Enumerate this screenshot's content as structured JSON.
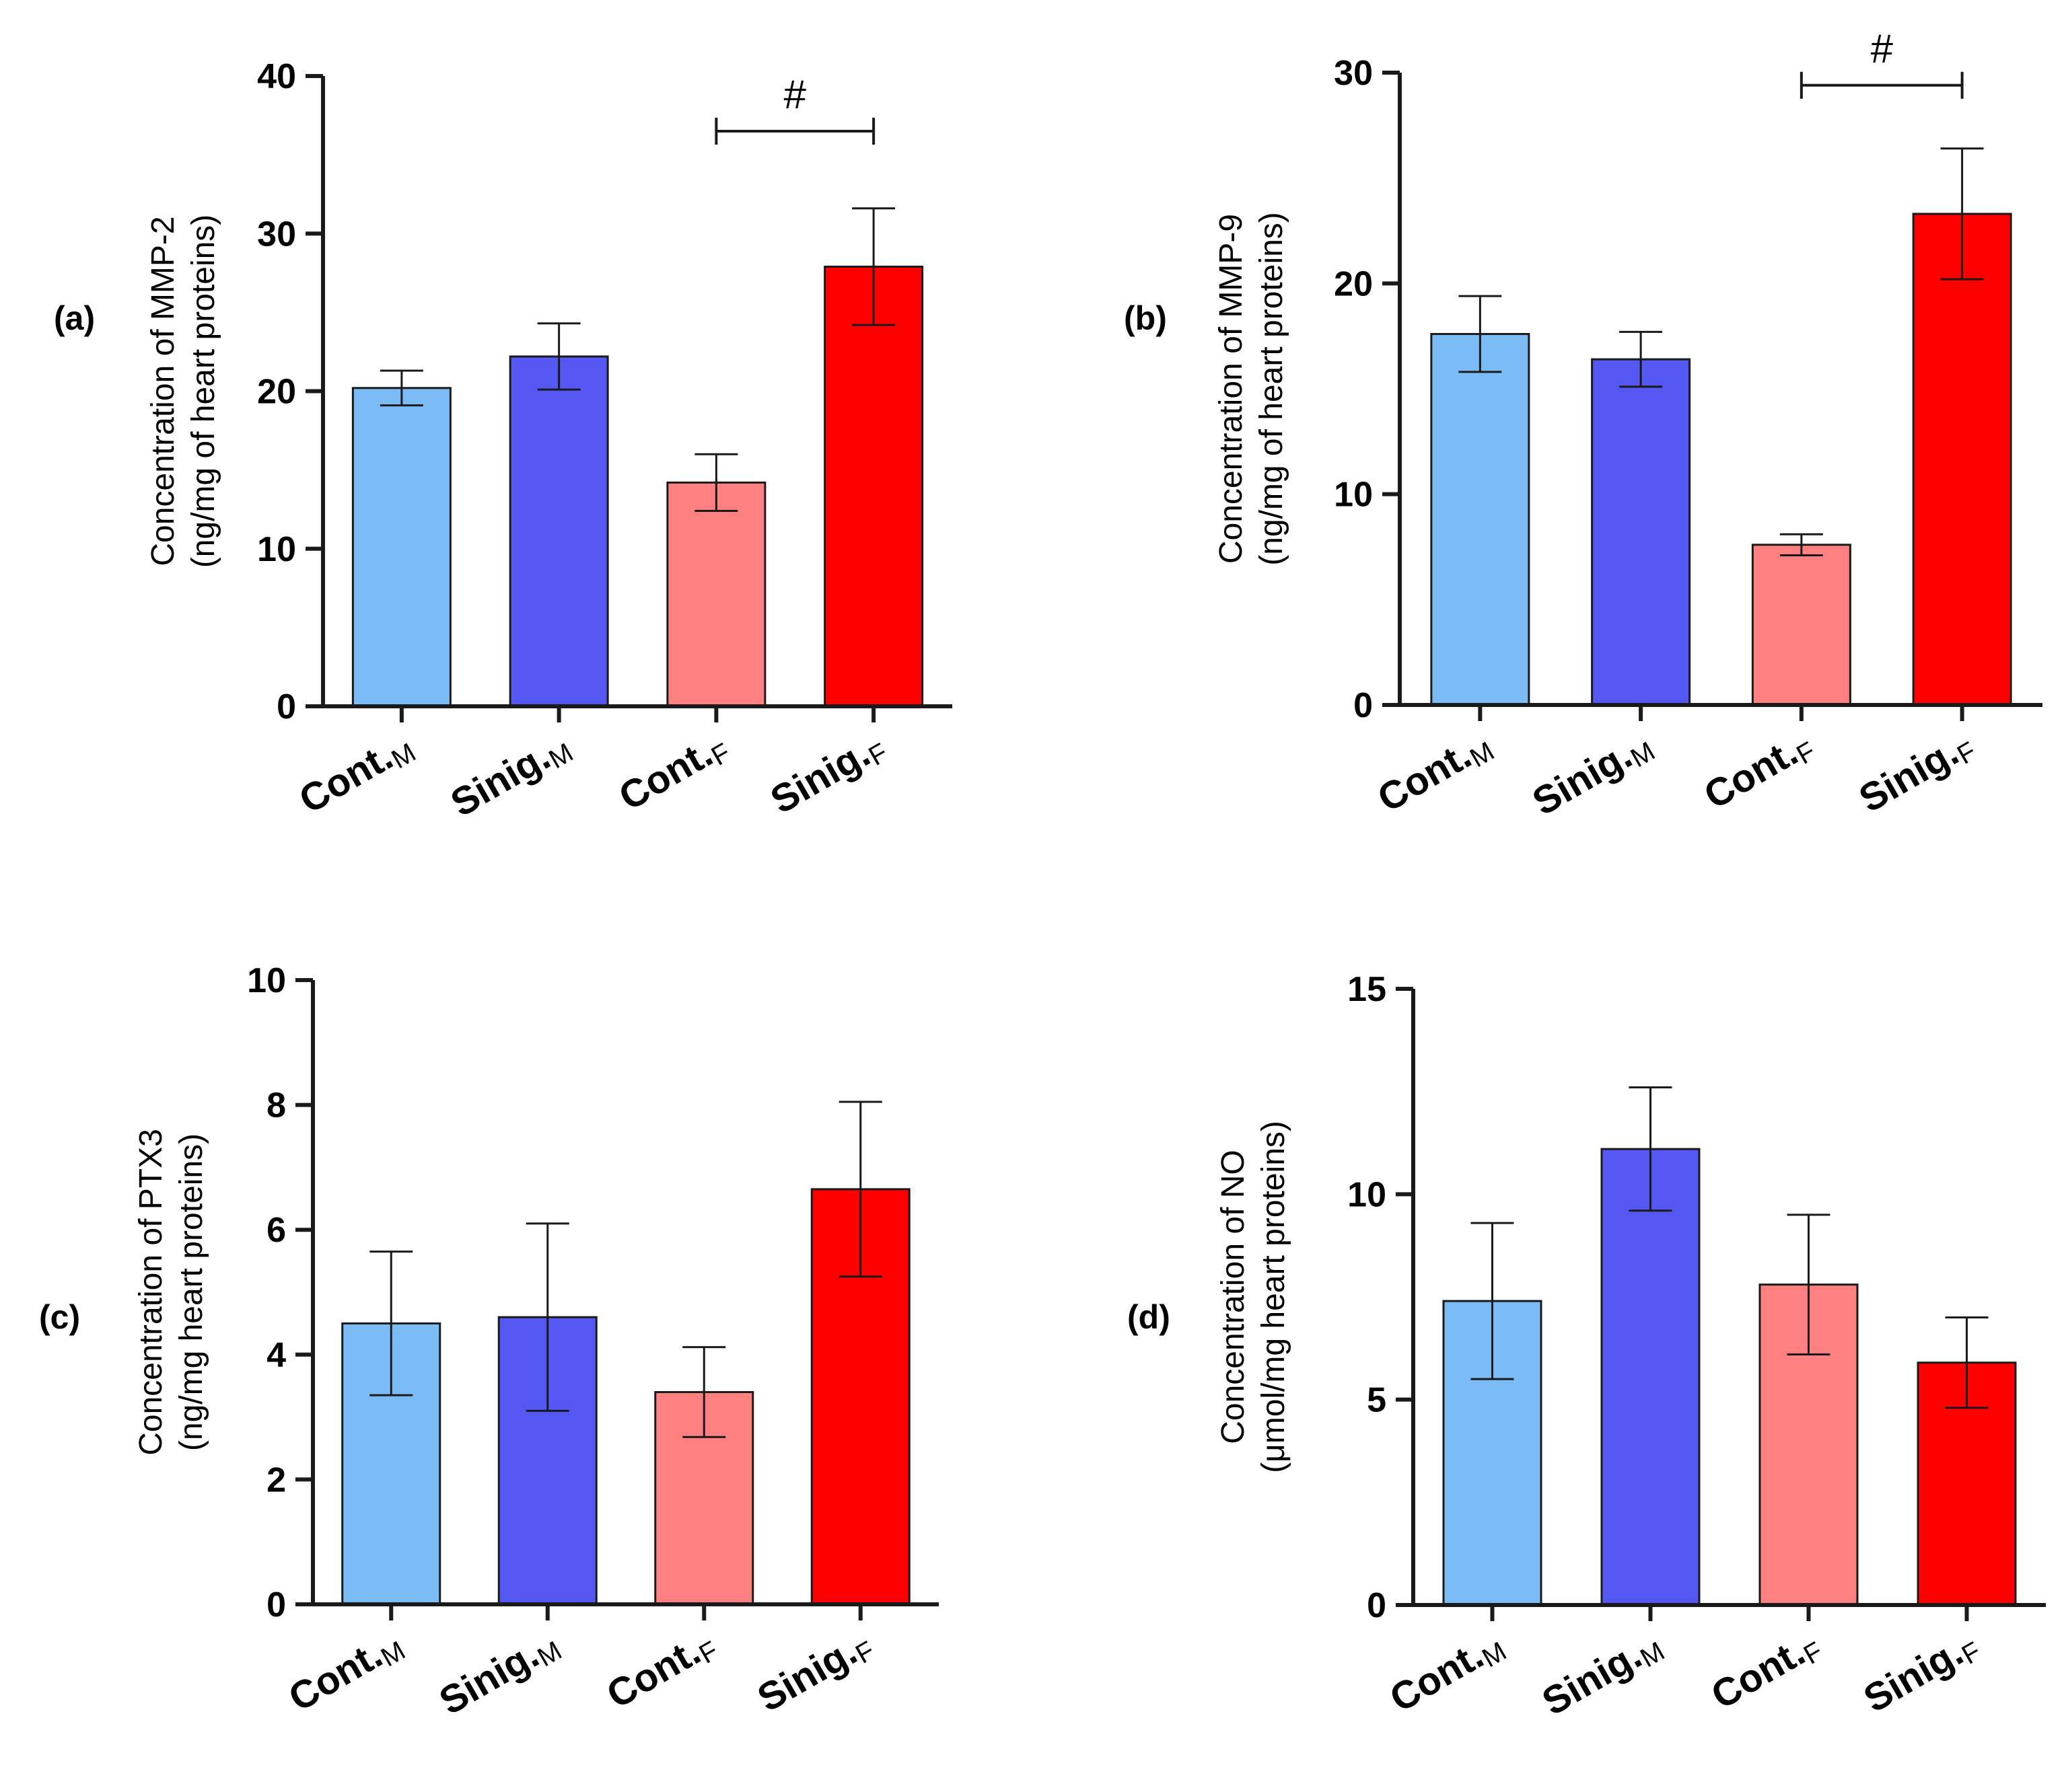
{
  "chart_data": [
    {
      "type": "bar",
      "panel_label": "(a)",
      "title": "",
      "categories": [
        {
          "base": "Cont.",
          "sub": "M"
        },
        {
          "base": "Sinig.",
          "sub": "M"
        },
        {
          "base": "Cont.",
          "sub": "F"
        },
        {
          "base": "Sinig.",
          "sub": "F"
        }
      ],
      "values": [
        20.2,
        22.2,
        14.2,
        27.9
      ],
      "errors": [
        1.1,
        2.1,
        1.8,
        3.7
      ],
      "colors": [
        "#7bbcf7",
        "#5557f2",
        "#ff8080",
        "#ff0000"
      ],
      "ylabel_line1": "Concentration of MMP-2",
      "ylabel_line2": "(ng/mg of heart proteins)",
      "ylim": [
        0,
        40
      ],
      "yticks": [
        0,
        10,
        20,
        30,
        40
      ],
      "significance": [
        {
          "from": 2,
          "to": 3,
          "label": "#",
          "y": 36.5
        }
      ]
    },
    {
      "type": "bar",
      "panel_label": "(b)",
      "title": "",
      "categories": [
        {
          "base": "Cont.",
          "sub": "M"
        },
        {
          "base": "Sinig.",
          "sub": "M"
        },
        {
          "base": "Cont.",
          "sub": "F"
        },
        {
          "base": "Sinig.",
          "sub": "F"
        }
      ],
      "values": [
        17.6,
        16.4,
        7.6,
        23.3
      ],
      "errors": [
        1.8,
        1.3,
        0.5,
        3.1
      ],
      "colors": [
        "#7bbcf7",
        "#5557f2",
        "#ff8080",
        "#ff0000"
      ],
      "ylabel_line1": "Concentration of MMP-9",
      "ylabel_line2": "(ng/mg of heart proteins)",
      "ylim": [
        0,
        30
      ],
      "yticks": [
        0,
        10,
        20,
        30
      ],
      "significance": [
        {
          "from": 2,
          "to": 3,
          "label": "#",
          "y": 29.4
        }
      ]
    },
    {
      "type": "bar",
      "panel_label": "(c)",
      "title": "",
      "categories": [
        {
          "base": "Cont.",
          "sub": "M"
        },
        {
          "base": "Sinig.",
          "sub": "M"
        },
        {
          "base": "Cont.",
          "sub": "F"
        },
        {
          "base": "Sinig.",
          "sub": "F"
        }
      ],
      "values": [
        4.5,
        4.6,
        3.4,
        6.65
      ],
      "errors": [
        1.15,
        1.5,
        0.72,
        1.4
      ],
      "colors": [
        "#7bbcf7",
        "#5557f2",
        "#ff8080",
        "#ff0000"
      ],
      "ylabel_line1": "Concentration of PTX3",
      "ylabel_line2": "(ng/mg heart proteins)",
      "ylim": [
        0,
        10
      ],
      "yticks": [
        0,
        2,
        4,
        6,
        8,
        10
      ],
      "significance": []
    },
    {
      "type": "bar",
      "panel_label": "(d)",
      "title": "",
      "categories": [
        {
          "base": "Cont.",
          "sub": "M"
        },
        {
          "base": "Sinig.",
          "sub": "M"
        },
        {
          "base": "Cont.",
          "sub": "F"
        },
        {
          "base": "Sinig.",
          "sub": "F"
        }
      ],
      "values": [
        7.4,
        11.1,
        7.8,
        5.9
      ],
      "errors": [
        1.9,
        1.5,
        1.7,
        1.1
      ],
      "colors": [
        "#7bbcf7",
        "#5557f2",
        "#ff8080",
        "#ff0000"
      ],
      "ylabel_line1": "Concentration of NO",
      "ylabel_line2": "(μmol/mg heart proteins)",
      "ylim": [
        0,
        15
      ],
      "yticks": [
        0,
        5,
        10,
        15
      ],
      "significance": []
    }
  ]
}
